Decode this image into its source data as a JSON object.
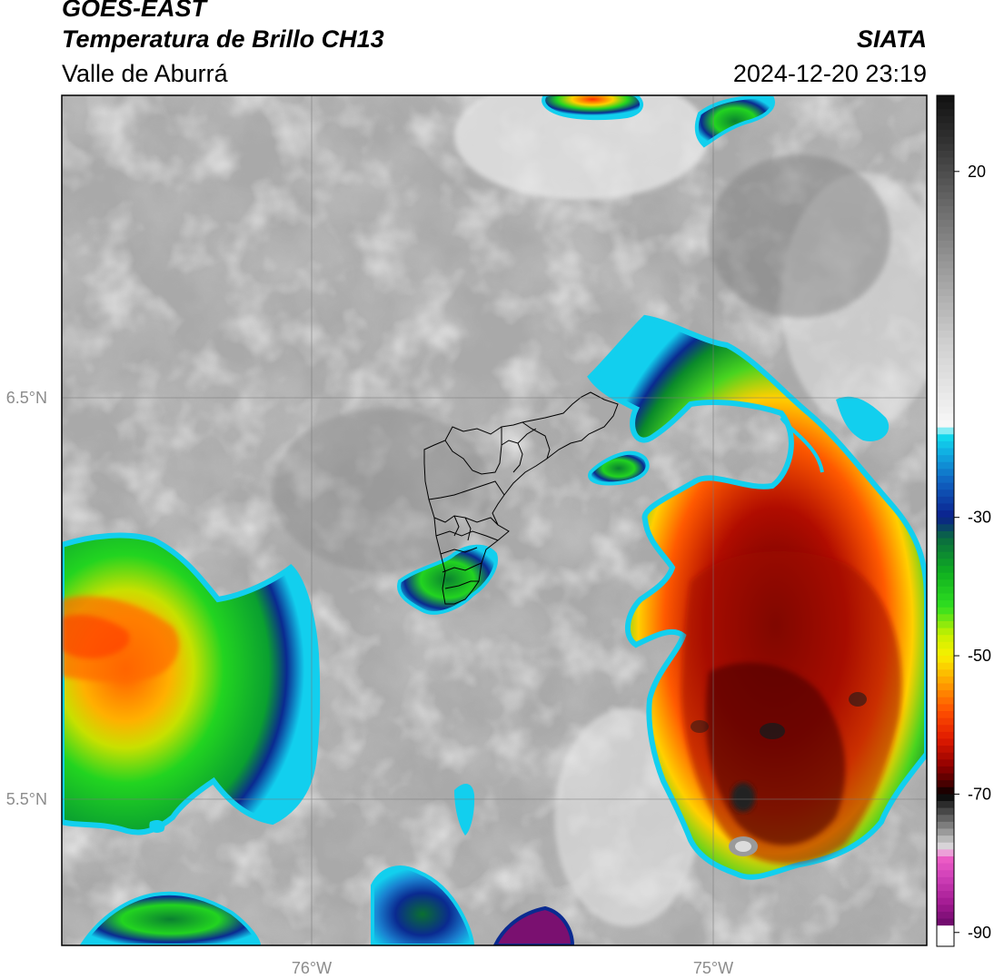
{
  "header": {
    "satellite": "GOES-EAST",
    "product": "Temperatura de Brillo CH13",
    "region": "Valle de Aburrá",
    "agency": "SIATA",
    "datetime": "2024-12-20 23:19"
  },
  "map": {
    "lon_ticks": [
      "76°W",
      "75°W"
    ],
    "lat_ticks": [
      "6.5°N",
      "5.5°N"
    ]
  },
  "colorbar": {
    "ticks": [
      "20",
      "-30",
      "-50",
      "-70",
      "-90"
    ],
    "tick_values": [
      20,
      -30,
      -50,
      -70,
      -90
    ],
    "range": [
      -92,
      31
    ],
    "colors": {
      "warm_top": "#111111",
      "gray_scale": [
        "#1e1e1e",
        "#555555",
        "#909090",
        "#c8c8c8",
        "#efefef"
      ],
      "cyan": "#13d7ef",
      "blue": "#0a1f8c",
      "green": "#1fd21f",
      "yellow": "#f8f000",
      "orange": "#ff8c00",
      "red": "#e01a00",
      "dark_red": "#4a0000",
      "magenta": "#e040c0",
      "purple": "#7a1070"
    }
  }
}
